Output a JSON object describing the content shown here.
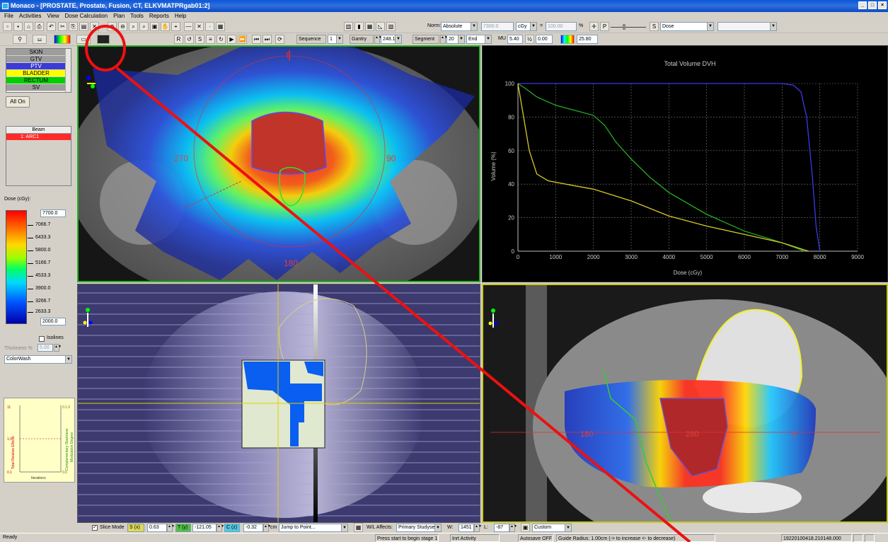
{
  "app": {
    "title": "Monaco - [PROSTATE, Prostate, Fusion, CT, ELKVMATPRgab01:2]",
    "window_buttons": [
      "_",
      "□",
      "×"
    ]
  },
  "menu": [
    "File",
    "Activities",
    "View",
    "Dose Calculation",
    "Plan",
    "Tools",
    "Reports",
    "Help"
  ],
  "toolbar1": {
    "norm_label": "Norm:",
    "norm_value": "Absolute",
    "dose_value": "7300.0",
    "dose_unit": "cGy",
    "pct_value": "100.00",
    "pct_unit": "%",
    "p_label": "P",
    "s_label": "S",
    "display_value": "Dose"
  },
  "toolbar2": {
    "sequence_label": "Sequence",
    "sequence_value": "1",
    "gantry_label": "Gantry",
    "gantry_value": "248.1",
    "segment_label": "Segment",
    "segment_value": "20",
    "end_value": "End",
    "mu_label": "MU",
    "mu_value": "5.40",
    "mu_extra": "0.00",
    "cbar_value": "25.80"
  },
  "roi_list": [
    {
      "name": "SKIN",
      "color": "#9d9d9d"
    },
    {
      "name": "GTV",
      "color": "#9d9d9d"
    },
    {
      "name": "PTV",
      "color": "#3b3bd6"
    },
    {
      "name": "BLADDER",
      "color": "#ffff00"
    },
    {
      "name": "RECTUM",
      "color": "#00d000"
    },
    {
      "name": "SV",
      "color": "#9d9d9d"
    }
  ],
  "left_panel": {
    "all_on_label": "All On",
    "beam_header": "Beam",
    "beam_row": "1: ARC1",
    "dose_label": "Dose (cGy):",
    "dose_max": "7700.0",
    "dose_min": "2000.0",
    "dose_ticks": [
      "7066.7",
      "6433.3",
      "5800.0",
      "5166.7",
      "4533.3",
      "3900.0",
      "3266.7",
      "2633.3"
    ],
    "isolines_label": "Isolines",
    "thickness_label": "Thickness %",
    "thickness_value": "5.00",
    "render_mode": "ColorWash",
    "opt_axis_left": "Total Relative Effects",
    "opt_axis_right1": "Complementary Slackness",
    "opt_axis_right2": "Modulation Degree",
    "opt_xlabel": "Iterations",
    "opt_ticks_left": [
      "11",
      "1.0",
      "0.1"
    ],
    "opt_ticks_right": [
      "0.1.0",
      "",
      "0.0"
    ]
  },
  "axial_view": {
    "angle_labels": [
      "270",
      "90",
      "180"
    ],
    "top_marker": "T"
  },
  "sagittal_view": {
    "side_labels": [
      "180",
      "0"
    ],
    "center_label": "280"
  },
  "chart_data": {
    "type": "line",
    "title": "Total Volume DVH",
    "xlabel": "Dose (cGy)",
    "ylabel": "Volume (%)",
    "xlim": [
      0,
      9000
    ],
    "ylim": [
      0,
      100
    ],
    "xticks": [
      0,
      1000,
      2000,
      3000,
      4000,
      5000,
      6000,
      7000,
      8000,
      9000
    ],
    "yticks": [
      0,
      20,
      40,
      60,
      80,
      100
    ],
    "grid": true,
    "series": [
      {
        "color": "#3a3ae8",
        "x": [
          0,
          7000,
          7300,
          7500,
          7650,
          7800,
          7900,
          8000
        ],
        "y": [
          100,
          100,
          99,
          95,
          80,
          45,
          15,
          0
        ]
      },
      {
        "color": "#22b022",
        "x": [
          0,
          200,
          500,
          1000,
          1500,
          2000,
          2300,
          2600,
          3000,
          3500,
          4000,
          5000,
          6000,
          7000,
          7600
        ],
        "y": [
          100,
          97,
          92,
          87,
          84,
          81,
          75,
          65,
          55,
          44,
          35,
          22,
          12,
          5,
          0
        ]
      },
      {
        "color": "#d7c82a",
        "x": [
          0,
          150,
          300,
          500,
          800,
          1500,
          2000,
          3000,
          4000,
          5000,
          6000,
          7000,
          7700
        ],
        "y": [
          100,
          80,
          60,
          46,
          42,
          39,
          37,
          30,
          21,
          15,
          10,
          5,
          0
        ]
      }
    ]
  },
  "bottom_toolbar": {
    "slice_mode_label": "Slice Mode",
    "s_tag": "S (x)",
    "s_value": "0.63",
    "t_tag": "T (y)",
    "t_value": "-121.05",
    "c_tag": "C (z)",
    "c_value": "-0.32",
    "unit": "cm",
    "jump_value": "Jump to Point...",
    "wl_label": "W/L Affects:",
    "wl_value": "Primary Studyset",
    "w_label": "W:",
    "w_value": "1451",
    "l_label": "L:",
    "l_value": "-87",
    "preset_value": "Custom"
  },
  "statusbar": {
    "ready": "Ready",
    "message": "Press start to begin stage 1",
    "activity": "Inrt Activity",
    "autosave": "Autosave OFF",
    "guide": "Guide Radius: 1.00cm (-> to increase <- to decrease)",
    "id": "19220100418.210148.000"
  }
}
